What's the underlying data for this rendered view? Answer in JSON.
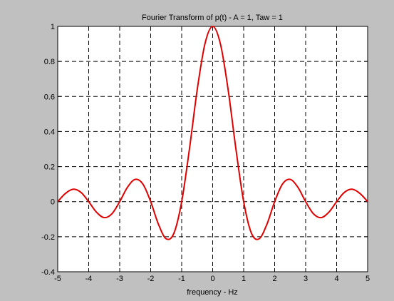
{
  "chart_data": {
    "type": "line",
    "title": "Fourier Transform of p(t) - A = 1, Taw = 1",
    "xlabel": "frequency - Hz",
    "ylabel": "",
    "xlim": [
      -5,
      5
    ],
    "ylim": [
      -0.4,
      1
    ],
    "grid": true,
    "xticks": [
      "-5",
      "-4",
      "-3",
      "-2",
      "-1",
      "0",
      "1",
      "2",
      "3",
      "4",
      "5"
    ],
    "yticks": [
      "-0.4",
      "-0.2",
      "0",
      "0.2",
      "0.4",
      "0.6",
      "0.8",
      "1"
    ],
    "series": [
      {
        "color": "#e00000",
        "x": [
          -5,
          -4.75,
          -4.5,
          -4.25,
          -4,
          -3.75,
          -3.5,
          -3.25,
          -3,
          -2.75,
          -2.5,
          -2.25,
          -2,
          -1.75,
          -1.5,
          -1.25,
          -1,
          -0.75,
          -0.5,
          -0.25,
          0,
          0.25,
          0.5,
          0.75,
          1,
          1.25,
          1.5,
          1.75,
          2,
          2.25,
          2.5,
          2.75,
          3,
          3.25,
          3.5,
          3.75,
          4,
          4.25,
          4.5,
          4.75,
          5
        ],
        "y": [
          0,
          0.047,
          0.071,
          0.053,
          0,
          -0.06,
          -0.091,
          -0.069,
          0,
          0.082,
          0.127,
          0.1,
          0,
          -0.129,
          -0.212,
          -0.18,
          0,
          0.3,
          0.637,
          0.9,
          1,
          0.9,
          0.637,
          0.3,
          0,
          -0.18,
          -0.212,
          -0.129,
          0,
          0.1,
          0.127,
          0.082,
          0,
          -0.069,
          -0.091,
          -0.06,
          0,
          0.053,
          0.071,
          0.047,
          0
        ]
      }
    ]
  }
}
